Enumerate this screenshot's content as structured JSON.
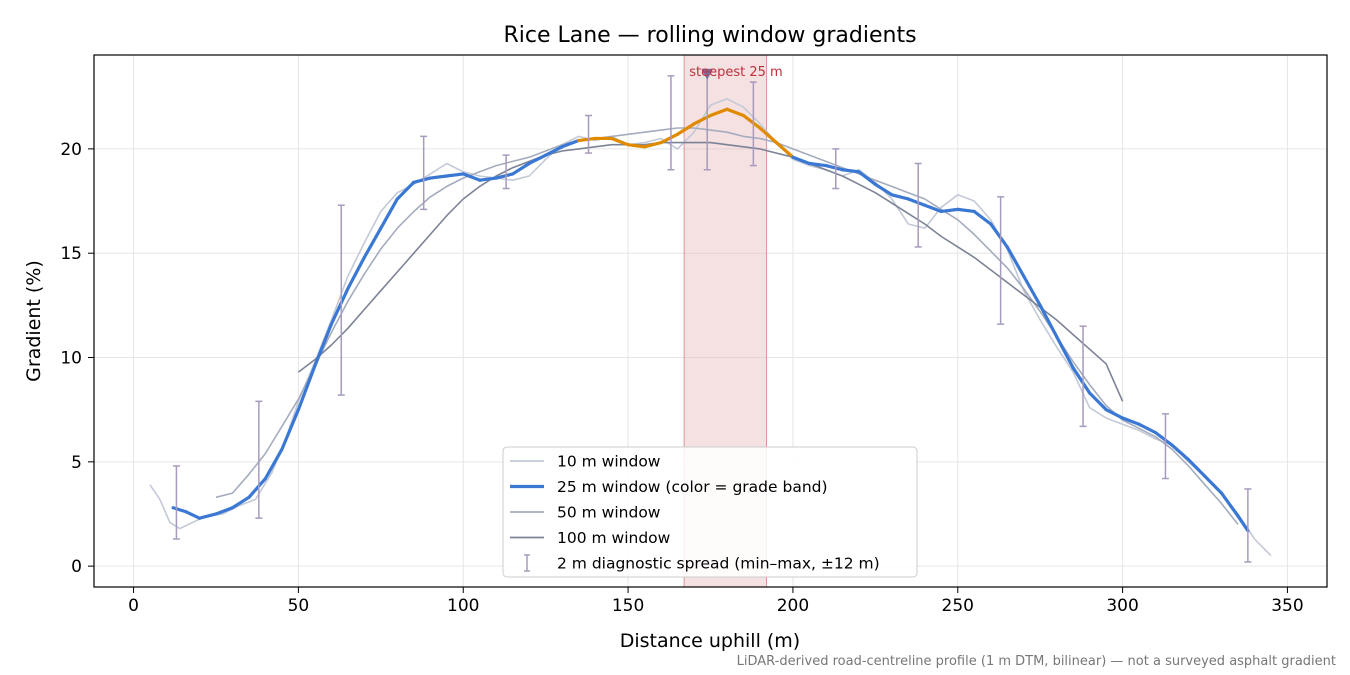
{
  "chart_data": {
    "type": "line",
    "title": "Rice Lane — rolling window gradients",
    "xlabel": "Distance uphill (m)",
    "ylabel": "Gradient (%)",
    "xlim": [
      -12,
      362
    ],
    "ylim": [
      -1,
      24.5
    ],
    "xticks": [
      0,
      50,
      100,
      150,
      200,
      250,
      300,
      350
    ],
    "yticks": [
      0,
      5,
      10,
      15,
      20
    ],
    "grid": true,
    "legend_position": "bottom-center",
    "highlight_band": {
      "x0": 167,
      "x1": 192,
      "color": "#e8b4bb"
    },
    "annotation": {
      "text": "steepest 25 m",
      "x": 174,
      "y": 23.6,
      "color": "#c0303a"
    },
    "footnote": "LiDAR-derived road-centreline profile (1 m DTM, bilinear) — not a surveyed asphalt gradient",
    "colors": {
      "blue": "#3a78d4",
      "orange": "#e08a00",
      "w10": "#c3c9d6",
      "w50": "#a4acbd",
      "w100": "#7c8396",
      "err": "#a79bbd"
    },
    "series": [
      {
        "name": "10 m window",
        "x": [
          5,
          8,
          11,
          14,
          18,
          22,
          27,
          32,
          37,
          42,
          46,
          50,
          55,
          60,
          65,
          70,
          75,
          80,
          85,
          90,
          95,
          100,
          105,
          110,
          115,
          120,
          125,
          130,
          135,
          140,
          145,
          150,
          155,
          160,
          165,
          170,
          175,
          180,
          185,
          190,
          195,
          200,
          205,
          210,
          215,
          220,
          225,
          230,
          235,
          240,
          245,
          250,
          255,
          260,
          265,
          270,
          275,
          280,
          285,
          290,
          295,
          300,
          305,
          310,
          315,
          320,
          325,
          330,
          335,
          340,
          345
        ],
        "y": [
          3.9,
          3.2,
          2.1,
          1.8,
          2.1,
          2.4,
          2.5,
          2.9,
          3.2,
          4.5,
          6.0,
          7.9,
          9.8,
          11.8,
          13.9,
          15.5,
          17.0,
          17.9,
          18.3,
          18.8,
          19.3,
          18.9,
          18.7,
          18.6,
          18.5,
          18.7,
          19.5,
          20.2,
          20.6,
          20.4,
          20.6,
          20.2,
          20.3,
          20.5,
          20.0,
          20.8,
          22.1,
          22.4,
          22.0,
          21.2,
          20.3,
          19.5,
          19.2,
          19.0,
          18.7,
          19.0,
          18.4,
          17.6,
          16.4,
          16.2,
          17.2,
          17.8,
          17.5,
          16.6,
          15.2,
          13.2,
          11.8,
          10.5,
          9.3,
          7.6,
          7.1,
          6.8,
          6.5,
          6.1,
          5.8,
          5.0,
          4.3,
          3.5,
          2.5,
          1.3,
          0.5
        ]
      },
      {
        "name": "25 m window (color = grade band)",
        "x": [
          12,
          16,
          20,
          25,
          30,
          35,
          40,
          45,
          50,
          55,
          60,
          65,
          70,
          75,
          80,
          85,
          90,
          95,
          100,
          105,
          110,
          115,
          120,
          125,
          130,
          135,
          140,
          145,
          150,
          155,
          160,
          165,
          170,
          175,
          180,
          185,
          190,
          195,
          200,
          205,
          210,
          215,
          220,
          225,
          230,
          235,
          240,
          245,
          250,
          255,
          260,
          265,
          270,
          275,
          280,
          285,
          290,
          295,
          300,
          305,
          310,
          315,
          320,
          325,
          330,
          335,
          338
        ],
        "y": [
          2.8,
          2.6,
          2.3,
          2.5,
          2.8,
          3.3,
          4.2,
          5.6,
          7.5,
          9.6,
          11.6,
          13.3,
          14.8,
          16.2,
          17.6,
          18.4,
          18.6,
          18.7,
          18.8,
          18.5,
          18.6,
          18.8,
          19.3,
          19.7,
          20.1,
          20.4,
          20.5,
          20.5,
          20.2,
          20.1,
          20.3,
          20.7,
          21.2,
          21.6,
          21.9,
          21.6,
          21.0,
          20.3,
          19.6,
          19.3,
          19.2,
          19.0,
          18.9,
          18.3,
          17.8,
          17.6,
          17.3,
          17.0,
          17.1,
          17.0,
          16.4,
          15.3,
          13.9,
          12.5,
          11.0,
          9.5,
          8.3,
          7.5,
          7.1,
          6.8,
          6.4,
          5.8,
          5.1,
          4.3,
          3.5,
          2.4,
          1.7
        ],
        "band": [
          "blue",
          "blue",
          "blue",
          "blue",
          "blue",
          "blue",
          "blue",
          "blue",
          "blue",
          "blue",
          "blue",
          "blue",
          "blue",
          "blue",
          "blue",
          "blue",
          "blue",
          "blue",
          "blue",
          "blue",
          "blue",
          "blue",
          "blue",
          "blue",
          "blue",
          "orange",
          "orange",
          "orange",
          "orange",
          "orange",
          "orange",
          "orange",
          "orange",
          "orange",
          "orange",
          "orange",
          "orange",
          "orange",
          "blue",
          "blue",
          "blue",
          "blue",
          "blue",
          "blue",
          "blue",
          "blue",
          "blue",
          "blue",
          "blue",
          "blue",
          "blue",
          "blue",
          "blue",
          "blue",
          "blue",
          "blue",
          "blue",
          "blue",
          "blue",
          "blue",
          "blue",
          "blue",
          "blue",
          "blue",
          "blue",
          "blue",
          "blue"
        ]
      },
      {
        "name": "50 m window",
        "x": [
          25,
          30,
          35,
          40,
          45,
          50,
          55,
          60,
          65,
          70,
          75,
          80,
          85,
          90,
          95,
          100,
          105,
          110,
          115,
          120,
          125,
          130,
          135,
          140,
          145,
          150,
          155,
          160,
          165,
          170,
          175,
          180,
          185,
          190,
          195,
          200,
          205,
          210,
          215,
          220,
          225,
          230,
          235,
          240,
          245,
          250,
          255,
          260,
          265,
          270,
          275,
          280,
          285,
          290,
          295,
          300,
          305,
          310,
          315,
          320,
          325,
          330,
          335
        ],
        "y": [
          3.3,
          3.5,
          4.4,
          5.4,
          6.7,
          8.0,
          9.6,
          11.2,
          12.7,
          14.0,
          15.2,
          16.2,
          17.0,
          17.7,
          18.2,
          18.6,
          18.9,
          19.2,
          19.4,
          19.6,
          19.9,
          20.2,
          20.4,
          20.5,
          20.6,
          20.7,
          20.8,
          20.9,
          21.0,
          21.0,
          20.9,
          20.8,
          20.6,
          20.5,
          20.3,
          20.0,
          19.7,
          19.4,
          19.1,
          18.8,
          18.5,
          18.2,
          17.9,
          17.6,
          17.1,
          16.6,
          15.9,
          15.1,
          14.3,
          13.3,
          12.2,
          11.0,
          9.8,
          8.7,
          7.7,
          7.0,
          6.6,
          6.2,
          5.6,
          4.8,
          3.9,
          3.0,
          2.0
        ]
      },
      {
        "name": "100 m window",
        "x": [
          50,
          55,
          60,
          65,
          70,
          75,
          80,
          85,
          90,
          95,
          100,
          105,
          110,
          115,
          120,
          125,
          130,
          135,
          140,
          145,
          150,
          155,
          160,
          165,
          170,
          175,
          180,
          185,
          190,
          195,
          200,
          205,
          210,
          215,
          220,
          225,
          230,
          235,
          240,
          245,
          250,
          255,
          260,
          265,
          270,
          275,
          280,
          285,
          290,
          295,
          300
        ],
        "y": [
          9.3,
          9.9,
          10.6,
          11.4,
          12.3,
          13.2,
          14.1,
          15.0,
          15.9,
          16.8,
          17.6,
          18.2,
          18.7,
          19.1,
          19.4,
          19.7,
          19.9,
          20.0,
          20.1,
          20.2,
          20.2,
          20.2,
          20.3,
          20.3,
          20.3,
          20.3,
          20.2,
          20.1,
          20.0,
          19.8,
          19.6,
          19.3,
          19.0,
          18.7,
          18.3,
          17.9,
          17.4,
          16.9,
          16.4,
          15.8,
          15.3,
          14.8,
          14.2,
          13.6,
          13.0,
          12.4,
          11.8,
          11.1,
          10.4,
          9.7,
          7.9
        ]
      }
    ],
    "error_bars": {
      "name": "2 m diagnostic spread (min–max, ±12 m)",
      "points": [
        {
          "x": 13,
          "ymin": 1.3,
          "ymax": 4.8
        },
        {
          "x": 38,
          "ymin": 2.3,
          "ymax": 7.9
        },
        {
          "x": 63,
          "ymin": 8.2,
          "ymax": 17.3
        },
        {
          "x": 88,
          "ymin": 17.1,
          "ymax": 20.6
        },
        {
          "x": 113,
          "ymin": 18.1,
          "ymax": 19.7
        },
        {
          "x": 138,
          "ymin": 19.8,
          "ymax": 21.6
        },
        {
          "x": 163,
          "ymin": 19.0,
          "ymax": 23.5
        },
        {
          "x": 174,
          "ymin": 19.0,
          "ymax": 23.7
        },
        {
          "x": 188,
          "ymin": 19.2,
          "ymax": 23.2
        },
        {
          "x": 213,
          "ymin": 18.1,
          "ymax": 20.0
        },
        {
          "x": 238,
          "ymin": 15.3,
          "ymax": 19.3
        },
        {
          "x": 263,
          "ymin": 11.6,
          "ymax": 17.7
        },
        {
          "x": 288,
          "ymin": 6.7,
          "ymax": 11.5
        },
        {
          "x": 313,
          "ymin": 4.2,
          "ymax": 7.3
        },
        {
          "x": 338,
          "ymin": 0.2,
          "ymax": 3.7
        }
      ]
    }
  }
}
